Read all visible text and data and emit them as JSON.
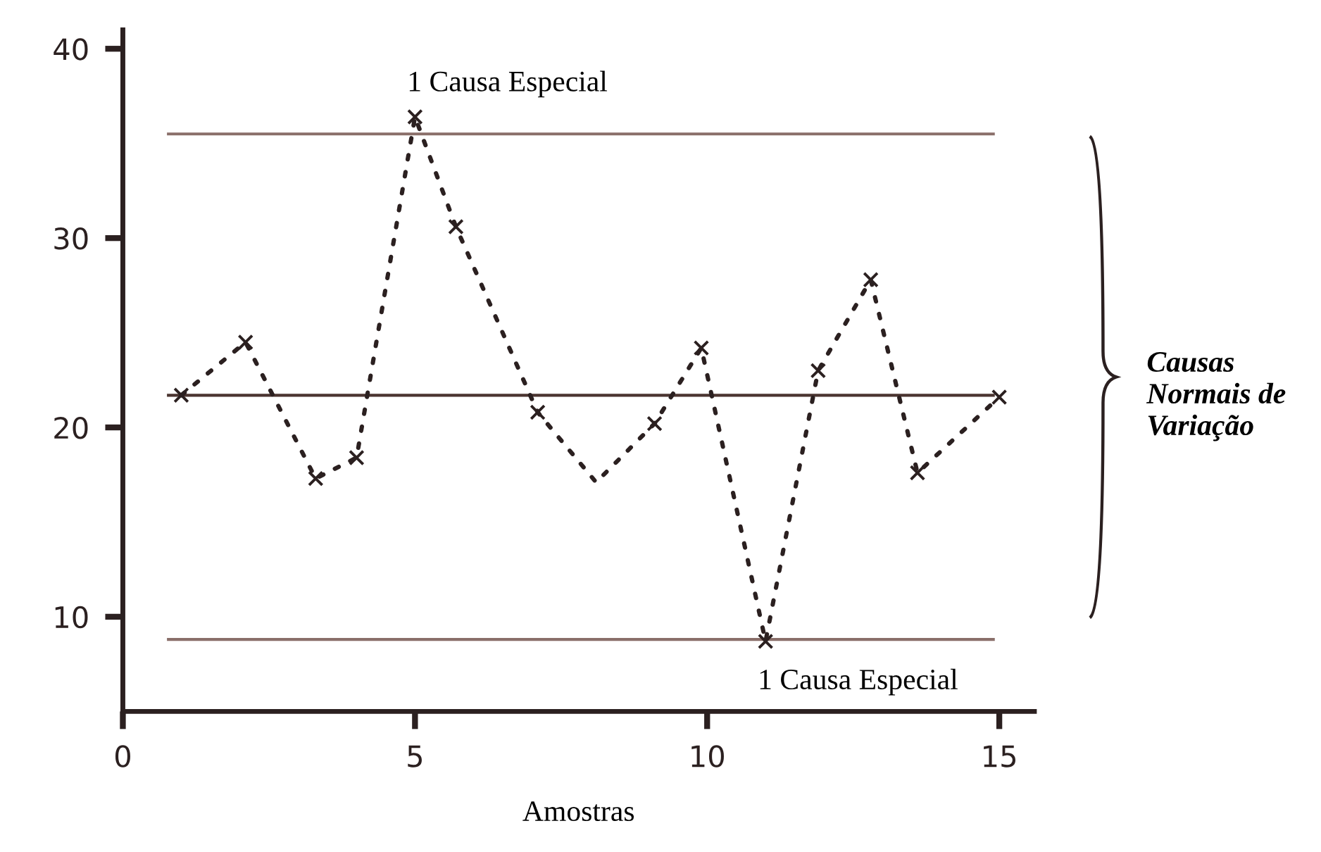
{
  "chart_data": {
    "type": "line",
    "xlabel": "Amostras",
    "xlim": [
      0,
      15.6
    ],
    "xticks": [
      0,
      5,
      10,
      15
    ],
    "ylim": [
      5,
      41
    ],
    "yticks": [
      10,
      20,
      30,
      40
    ],
    "grid": false,
    "series": [
      {
        "color": "#2b2020",
        "line_style": "dotted",
        "marker": "none",
        "x": [
          1.0,
          2.1,
          3.3,
          4.0,
          5.0,
          5.7,
          7.1,
          8.1,
          9.1,
          9.9,
          11.0,
          11.9,
          12.8,
          13.6,
          15.0
        ],
        "values": [
          21.7,
          24.5,
          17.3,
          18.4,
          36.4,
          30.6,
          20.8,
          17.1,
          20.2,
          24.2,
          8.7,
          23.0,
          27.8,
          17.6,
          21.6
        ]
      },
      {
        "type": "scatter",
        "color": "#2b2020",
        "marker": "cross",
        "x": [
          1.0,
          2.1,
          3.3,
          4.0,
          5.0,
          5.7,
          7.1,
          9.1,
          9.9,
          11.0,
          11.9,
          12.8,
          13.6,
          15.0
        ],
        "values": [
          21.7,
          24.5,
          17.3,
          18.4,
          36.4,
          30.6,
          20.8,
          20.2,
          24.2,
          8.7,
          23.0,
          27.8,
          17.6,
          21.6
        ]
      }
    ],
    "ref_lines": [
      {
        "axis": "y",
        "value": 35.5,
        "color": "#8a6f6a",
        "line_style": "solid"
      },
      {
        "axis": "y",
        "value": 21.7,
        "color": "#4a3430",
        "line_style": "solid"
      },
      {
        "axis": "y",
        "value": 8.8,
        "color": "#8a6f6a",
        "line_style": "solid"
      }
    ],
    "annotations": [
      {
        "text": "1 Causa Especial",
        "x": 5.0,
        "y": 36.4
      },
      {
        "text": "1 Causa Especial",
        "x": 11.0,
        "y": 8.7
      },
      "Causas\nNormais de\nVariação"
    ]
  }
}
